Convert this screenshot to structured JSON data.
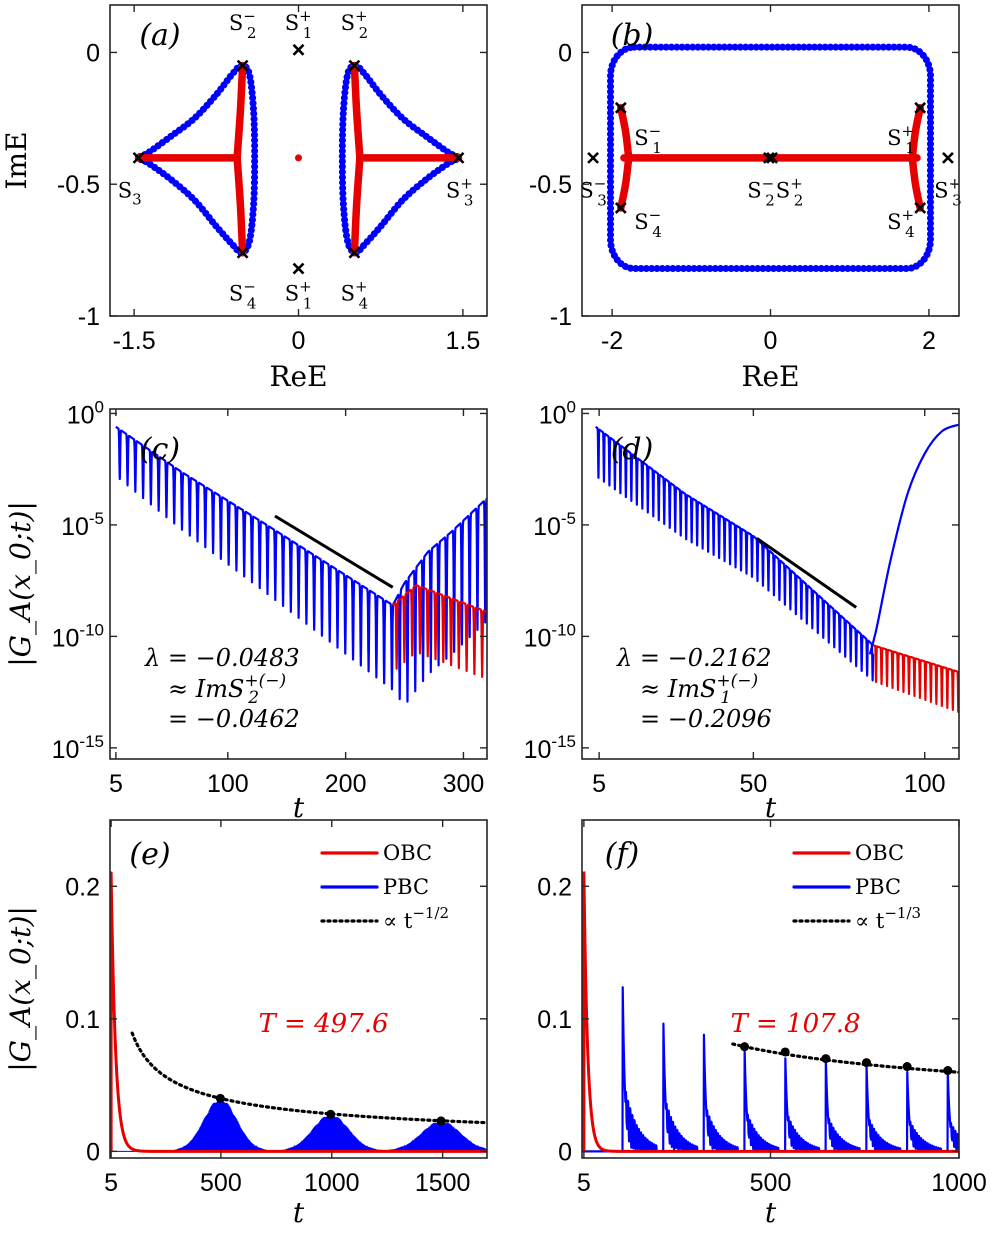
{
  "chart_data": [
    {
      "id": "a",
      "type": "scatter",
      "panel_label": "(a)",
      "xlabel": "ReE",
      "ylabel": "ImE",
      "xlim": [
        -1.72,
        1.72
      ],
      "ylim": [
        -1.0,
        0.18
      ],
      "xticks": [
        {
          "v": -1.5,
          "label": "-1.5"
        },
        {
          "v": 0,
          "label": "0"
        },
        {
          "v": 1.5,
          "label": "1.5"
        }
      ],
      "yticks": [
        {
          "v": 0,
          "label": "0"
        },
        {
          "v": -0.5,
          "label": "-0.5"
        },
        {
          "v": -1,
          "label": "-1"
        }
      ],
      "series": [
        {
          "name": "PBC spectrum",
          "color": "#0000ff",
          "loops": [
            {
              "x": [
                -0.52,
                -0.6,
                -0.75,
                -0.95,
                -1.17,
                -1.37,
                -1.46,
                -1.37,
                -1.17,
                -0.95,
                -0.75,
                -0.6,
                -0.52,
                -0.45,
                -0.41,
                -0.4,
                -0.41,
                -0.45,
                -0.52
              ],
              "y": [
                -0.05,
                -0.08,
                -0.16,
                -0.25,
                -0.32,
                -0.38,
                -0.4,
                -0.42,
                -0.48,
                -0.56,
                -0.66,
                -0.73,
                -0.76,
                -0.72,
                -0.58,
                -0.4,
                -0.22,
                -0.08,
                -0.05
              ]
            },
            {
              "x": [
                0.52,
                0.6,
                0.75,
                0.95,
                1.17,
                1.37,
                1.46,
                1.37,
                1.17,
                0.95,
                0.75,
                0.6,
                0.52,
                0.45,
                0.41,
                0.4,
                0.41,
                0.45,
                0.52
              ],
              "y": [
                -0.05,
                -0.08,
                -0.16,
                -0.25,
                -0.32,
                -0.38,
                -0.4,
                -0.42,
                -0.48,
                -0.56,
                -0.66,
                -0.73,
                -0.76,
                -0.72,
                -0.58,
                -0.4,
                -0.22,
                -0.08,
                -0.05
              ]
            }
          ]
        },
        {
          "name": "OBC spectrum",
          "color": "#e60000",
          "branches": [
            {
              "x": [
                -0.56,
                -0.53,
                -0.51
              ],
              "y": [
                -0.4,
                -0.22,
                -0.05
              ]
            },
            {
              "x": [
                -0.56,
                -0.53,
                -0.51
              ],
              "y": [
                -0.4,
                -0.58,
                -0.76
              ]
            },
            {
              "x": [
                -0.56,
                -1.46
              ],
              "y": [
                -0.4,
                -0.4
              ]
            },
            {
              "x": [
                0.56,
                0.53,
                0.51
              ],
              "y": [
                -0.4,
                -0.22,
                -0.05
              ]
            },
            {
              "x": [
                0.56,
                0.53,
                0.51
              ],
              "y": [
                -0.4,
                -0.58,
                -0.76
              ]
            },
            {
              "x": [
                0.56,
                1.46
              ],
              "y": [
                -0.4,
                -0.4
              ]
            }
          ],
          "dots": [
            {
              "x": 0,
              "y": -0.4
            }
          ]
        }
      ],
      "saddle_points": [
        {
          "x": 0,
          "y": 0.01,
          "label": "S",
          "sup": "+",
          "sub": "1",
          "lx": 0,
          "ly": 0.115,
          "anchor": "middle"
        },
        {
          "x": -0.51,
          "y": -0.05,
          "label": "S",
          "sup": "−",
          "sub": "2",
          "lx": -0.51,
          "ly": 0.115,
          "anchor": "middle"
        },
        {
          "x": 0.51,
          "y": -0.05,
          "label": "S",
          "sup": "+",
          "sub": "2",
          "lx": 0.51,
          "ly": 0.115,
          "anchor": "middle"
        },
        {
          "x": -1.46,
          "y": -0.4,
          "label": "S",
          "sup": "",
          "sub": "3",
          "lx": -1.54,
          "ly": -0.52,
          "anchor": "middle"
        },
        {
          "x": 1.46,
          "y": -0.4,
          "label": "S",
          "sup": "+",
          "sub": "3",
          "lx": 1.47,
          "ly": -0.52,
          "anchor": "middle"
        },
        {
          "x": -0.51,
          "y": -0.76,
          "label": "S",
          "sup": "−",
          "sub": "4",
          "lx": -0.51,
          "ly": -0.91,
          "anchor": "middle"
        },
        {
          "x": 0,
          "y": -0.82,
          "label": "S",
          "sup": "+",
          "sub": "1",
          "lx": 0,
          "ly": -0.91,
          "anchor": "middle"
        },
        {
          "x": 0.51,
          "y": -0.76,
          "label": "S",
          "sup": "+",
          "sub": "4",
          "lx": 0.51,
          "ly": -0.91,
          "anchor": "middle"
        }
      ]
    },
    {
      "id": "b",
      "type": "scatter",
      "panel_label": "(b)",
      "xlabel": "ReE",
      "ylabel": "",
      "xlim": [
        -2.38,
        2.38
      ],
      "ylim": [
        -1.0,
        0.18
      ],
      "xticks": [
        {
          "v": -2,
          "label": "-2"
        },
        {
          "v": 0,
          "label": "0"
        },
        {
          "v": 2,
          "label": "2"
        }
      ],
      "yticks": [
        {
          "v": 0,
          "label": "0"
        },
        {
          "v": -0.5,
          "label": "-0.5"
        },
        {
          "v": -1,
          "label": "-1"
        }
      ],
      "series": [
        {
          "name": "PBC spectrum",
          "color": "#0000ff",
          "rect": {
            "xmin": -2.02,
            "xmax": 2.02,
            "ymin": -0.82,
            "ymax": 0.02,
            "corner_dx": 0.3,
            "corner_dy": 0.11
          }
        },
        {
          "name": "OBC spectrum",
          "color": "#e60000",
          "branches": [
            {
              "x": [
                -1.85,
                1.85
              ],
              "y": [
                -0.4,
                -0.4
              ]
            },
            {
              "x": [
                -1.89,
                -1.83,
                -1.79
              ],
              "y": [
                -0.21,
                -0.3,
                -0.4
              ]
            },
            {
              "x": [
                -1.79,
                -1.83,
                -1.89
              ],
              "y": [
                -0.4,
                -0.5,
                -0.59
              ]
            },
            {
              "x": [
                1.89,
                1.83,
                1.79
              ],
              "y": [
                -0.21,
                -0.3,
                -0.4
              ]
            },
            {
              "x": [
                1.79,
                1.83,
                1.89
              ],
              "y": [
                -0.4,
                -0.5,
                -0.59
              ]
            }
          ]
        }
      ],
      "saddle_points": [
        {
          "x": -1.89,
          "y": -0.21,
          "label": "S",
          "sup": "−",
          "sub": "1",
          "lx": -1.72,
          "ly": -0.32,
          "anchor": "start"
        },
        {
          "x": 1.89,
          "y": -0.21,
          "label": "S",
          "sup": "+",
          "sub": "1",
          "lx": 1.82,
          "ly": -0.32,
          "anchor": "end"
        },
        {
          "x": -0.02,
          "y": -0.4,
          "label": "S",
          "sup": "−",
          "sub": "2",
          "lx": -0.12,
          "ly": -0.52,
          "anchor": "middle"
        },
        {
          "x": 0.02,
          "y": -0.4,
          "label": "S",
          "sup": "+",
          "sub": "2",
          "lx": 0.24,
          "ly": -0.52,
          "anchor": "middle"
        },
        {
          "x": -2.24,
          "y": -0.4,
          "label": "S",
          "sup": "−",
          "sub": "3",
          "lx": -2.24,
          "ly": -0.52,
          "anchor": "middle"
        },
        {
          "x": 2.24,
          "y": -0.4,
          "label": "S",
          "sup": "+",
          "sub": "3",
          "lx": 2.24,
          "ly": -0.52,
          "anchor": "middle"
        },
        {
          "x": -1.89,
          "y": -0.59,
          "label": "S",
          "sup": "−",
          "sub": "4",
          "lx": -1.72,
          "ly": -0.64,
          "anchor": "start"
        },
        {
          "x": 1.89,
          "y": -0.59,
          "label": "S",
          "sup": "+",
          "sub": "4",
          "lx": 1.82,
          "ly": -0.64,
          "anchor": "end"
        }
      ]
    },
    {
      "id": "c",
      "type": "line",
      "panel_label": "(c)",
      "yscale": "log",
      "xlabel": "t",
      "ylabel": "|G_A(x_0;t)|",
      "xlim": [
        0,
        320
      ],
      "ylim_log10": [
        -15.5,
        0.2
      ],
      "xticks": [
        {
          "v": 5,
          "label": "5"
        },
        {
          "v": 100,
          "label": "100"
        },
        {
          "v": 200,
          "label": "200"
        },
        {
          "v": 300,
          "label": "300"
        }
      ],
      "yticks_log10": [
        {
          "v": 0,
          "base": "10",
          "exp": "0"
        },
        {
          "v": -5,
          "base": "10",
          "exp": "-5"
        },
        {
          "v": -10,
          "base": "10",
          "exp": "-10"
        },
        {
          "v": -15,
          "base": "10",
          "exp": "-15"
        }
      ],
      "series": [
        {
          "name": "PBC",
          "color": "#0000ff",
          "t_start": 5,
          "t_end": 320,
          "period": 6.6,
          "env_t": [
            5,
            60,
            130,
            240,
            250,
            270,
            290,
            320
          ],
          "env_log": [
            -0.6,
            -2.6,
            -4.9,
            -8.6,
            -7.6,
            -6.2,
            -5.3,
            -3.8
          ],
          "depth_t": [
            5,
            240,
            250,
            320
          ],
          "depth_log": [
            -2.2,
            -3.8,
            -5.5,
            -5.5
          ]
        },
        {
          "name": "OBC",
          "color": "#e60000",
          "t_start": 240,
          "t_end": 320,
          "period": 6.6,
          "env_t": [
            240,
            260,
            290,
            320
          ],
          "env_log": [
            -8.6,
            -7.7,
            -8.3,
            -8.9
          ],
          "depth_t": [
            240,
            320
          ],
          "depth_log": [
            -3.0,
            -3.0
          ]
        }
      ],
      "fit_line": {
        "t": [
          140,
          240
        ],
        "log": [
          -4.6,
          -7.8
        ],
        "color": "#000000"
      },
      "annotation": {
        "lambda": "λ = −0.0483",
        "approx": "≈ ImS",
        "approx_sup": "+(−)",
        "approx_sub": "2",
        "equals": "= −0.0462"
      }
    },
    {
      "id": "d",
      "type": "line",
      "panel_label": "(d)",
      "yscale": "log",
      "xlabel": "t",
      "ylabel": "",
      "xlim": [
        0,
        110
      ],
      "ylim_log10": [
        -15.5,
        0.2
      ],
      "xticks": [
        {
          "v": 5,
          "label": "5"
        },
        {
          "v": 50,
          "label": "50"
        },
        {
          "v": 100,
          "label": "100"
        }
      ],
      "yticks_log10": [
        {
          "v": 0,
          "base": "10",
          "exp": "0"
        },
        {
          "v": -5,
          "base": "10",
          "exp": "-5"
        },
        {
          "v": -10,
          "base": "10",
          "exp": "-10"
        },
        {
          "v": -15,
          "base": "10",
          "exp": "-15"
        }
      ],
      "series": [
        {
          "name": "PBC",
          "color": "#0000ff",
          "t_start": 4,
          "t_end": 85,
          "period": 1.6,
          "env_t": [
            4,
            30,
            50,
            85
          ],
          "env_log": [
            -0.6,
            -3.6,
            -5.5,
            -10.4
          ],
          "depth_t": [
            4,
            85
          ],
          "depth_log": [
            -2.2,
            -1.6
          ],
          "rise": {
            "t": [
              84,
              86,
              90,
              95,
              100,
              105,
              110
            ],
            "log": [
              -10.8,
              -9.6,
              -6.6,
              -3.6,
              -1.8,
              -0.8,
              -0.5
            ]
          }
        },
        {
          "name": "OBC",
          "color": "#e60000",
          "t_start": 85,
          "t_end": 110,
          "period": 1.6,
          "env_t": [
            85,
            110
          ],
          "env_log": [
            -10.4,
            -11.6
          ],
          "depth_t": [
            85,
            110
          ],
          "depth_log": [
            -1.6,
            -1.8
          ]
        }
      ],
      "fit_line": {
        "t": [
          51,
          80
        ],
        "log": [
          -5.6,
          -8.7
        ],
        "color": "#000000"
      },
      "annotation": {
        "lambda": "λ = −0.2162",
        "approx": "≈ ImS",
        "approx_sup": "+(−)",
        "approx_sub": "1",
        "equals": "= −0.2096"
      }
    },
    {
      "id": "e",
      "type": "line",
      "panel_label": "(e)",
      "xlabel": "t",
      "ylabel": "|G_A(x_0;t)|",
      "xlim": [
        0,
        1700
      ],
      "ylim": [
        -0.005,
        0.25
      ],
      "xticks": [
        {
          "v": 5,
          "label": "5"
        },
        {
          "v": 500,
          "label": "500"
        },
        {
          "v": 1000,
          "label": "1000"
        },
        {
          "v": 1500,
          "label": "1500"
        }
      ],
      "yticks": [
        {
          "v": 0,
          "label": "0"
        },
        {
          "v": 0.1,
          "label": "0.1"
        },
        {
          "v": 0.2,
          "label": "0.2"
        }
      ],
      "series": [
        {
          "name": "OBC",
          "color": "#e60000",
          "peak": 0.21,
          "t_peak": 5,
          "decay_width": 20
        },
        {
          "name": "PBC",
          "color": "#0000ff",
          "bumps": [
            {
              "t": 497.6,
              "a": 0.04,
              "w": 105
            },
            {
              "t": 995.2,
              "a": 0.028,
              "w": 115
            },
            {
              "t": 1492.8,
              "a": 0.023,
              "w": 125
            }
          ]
        },
        {
          "name": "∝ t^{-1/2}",
          "color": "#000000",
          "power": -0.5,
          "t_range": [
            100,
            1700
          ],
          "ref_t": 497.6,
          "ref_y": 0.04
        }
      ],
      "peaks": [
        {
          "t": 497.6,
          "y": 0.04
        },
        {
          "t": 995.2,
          "y": 0.028
        },
        {
          "t": 1492.8,
          "y": 0.023
        }
      ],
      "legend": [
        {
          "label": "OBC",
          "color": "#e60000",
          "style": "solid"
        },
        {
          "label": "PBC",
          "color": "#0000ff",
          "style": "solid"
        },
        {
          "label": "∝ t",
          "sup": "−1/2",
          "color": "#000000",
          "style": "dotted"
        }
      ],
      "period_text": "T = 497.6"
    },
    {
      "id": "f",
      "type": "line",
      "panel_label": "(f)",
      "xlabel": "t",
      "ylabel": "",
      "xlim": [
        0,
        1000
      ],
      "ylim": [
        -0.005,
        0.25
      ],
      "xticks": [
        {
          "v": 5,
          "label": "5"
        },
        {
          "v": 500,
          "label": "500"
        },
        {
          "v": 1000,
          "label": "1000"
        }
      ],
      "yticks": [
        {
          "v": 0,
          "label": "0"
        },
        {
          "v": 0.1,
          "label": "0.1"
        },
        {
          "v": 0.2,
          "label": "0.2"
        }
      ],
      "series": [
        {
          "name": "OBC",
          "color": "#e60000",
          "peak": 0.21,
          "t_peak": 5,
          "decay_width": 10
        },
        {
          "name": "PBC",
          "color": "#0000ff",
          "spikes": [
            {
              "t": 107.8,
              "a": 0.128
            },
            {
              "t": 215.6,
              "a": 0.103
            },
            {
              "t": 323.4,
              "a": 0.088
            },
            {
              "t": 431.2,
              "a": 0.079
            },
            {
              "t": 539.0,
              "a": 0.075
            },
            {
              "t": 646.8,
              "a": 0.07
            },
            {
              "t": 754.6,
              "a": 0.067
            },
            {
              "t": 862.4,
              "a": 0.064
            },
            {
              "t": 970.2,
              "a": 0.061
            }
          ]
        },
        {
          "name": "∝ t^{-1/3}",
          "color": "#000000",
          "power": -0.3333,
          "t_range": [
            400,
            1000
          ],
          "ref_t": 431.2,
          "ref_y": 0.079
        }
      ],
      "peaks": [
        {
          "t": 431.2,
          "y": 0.079
        },
        {
          "t": 539.0,
          "y": 0.075
        },
        {
          "t": 646.8,
          "y": 0.07
        },
        {
          "t": 754.6,
          "y": 0.067
        },
        {
          "t": 862.4,
          "y": 0.064
        },
        {
          "t": 970.2,
          "y": 0.061
        }
      ],
      "legend": [
        {
          "label": "OBC",
          "color": "#e60000",
          "style": "solid"
        },
        {
          "label": "PBC",
          "color": "#0000ff",
          "style": "solid"
        },
        {
          "label": "∝ t",
          "sup": "−1/3",
          "color": "#000000",
          "style": "dotted"
        }
      ],
      "period_text": "T = 107.8"
    }
  ]
}
